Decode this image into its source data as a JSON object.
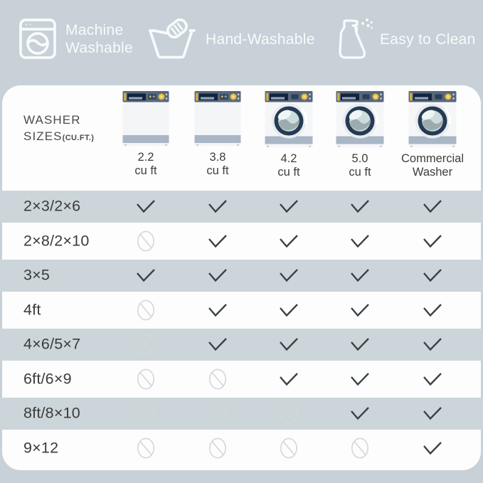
{
  "header": {
    "features": [
      {
        "label": "Machine\nWashable",
        "icon": "machine-washable-icon"
      },
      {
        "label": "Hand-Washable",
        "icon": "hand-wash-icon"
      },
      {
        "label": "Easy to Clean",
        "icon": "spray-bottle-icon"
      }
    ]
  },
  "table": {
    "title_line1": "WASHER",
    "title_line2": "SIZES",
    "title_suffix": "(CU.FT.)",
    "columns": [
      {
        "label": "2.2\ncu ft",
        "washer": "top-load-washer"
      },
      {
        "label": "3.8\ncu ft",
        "washer": "top-load-washer"
      },
      {
        "label": "4.2\ncu ft",
        "washer": "front-load-washer"
      },
      {
        "label": "5.0\ncu ft",
        "washer": "front-load-washer"
      },
      {
        "label": "Commercial\nWasher",
        "washer": "front-load-washer"
      }
    ],
    "rows": [
      {
        "label": "2×3/2×6",
        "cells": [
          true,
          true,
          true,
          true,
          true
        ]
      },
      {
        "label": "2×8/2×10",
        "cells": [
          false,
          true,
          true,
          true,
          true
        ]
      },
      {
        "label": "3×5",
        "cells": [
          true,
          true,
          true,
          true,
          true
        ]
      },
      {
        "label": "4ft",
        "cells": [
          false,
          true,
          true,
          true,
          true
        ]
      },
      {
        "label": "4×6/5×7",
        "cells": [
          false,
          true,
          true,
          true,
          true
        ]
      },
      {
        "label": "6ft/6×9",
        "cells": [
          false,
          false,
          true,
          true,
          true
        ]
      },
      {
        "label": "8ft/8×10",
        "cells": [
          false,
          false,
          false,
          true,
          true
        ]
      },
      {
        "label": "9×12",
        "cells": [
          false,
          false,
          false,
          false,
          true
        ]
      }
    ]
  },
  "icons": {
    "allowed": "check-icon",
    "not_allowed": "prohibited-icon"
  },
  "colors": {
    "page_bg": "#c7d1d7",
    "stripe": "#ccd5d9",
    "panel_bg": "#fdfdfd",
    "check": "#3a4146",
    "prohibited": "#d3d7d8",
    "dark_text": "#3c3c3c",
    "white_text": "#f8fbfb",
    "washer_navy": "#273a53",
    "washer_panel": "#57687b",
    "washer_yellow": "#e6bb3e",
    "washer_band": "#a9b6c5"
  }
}
